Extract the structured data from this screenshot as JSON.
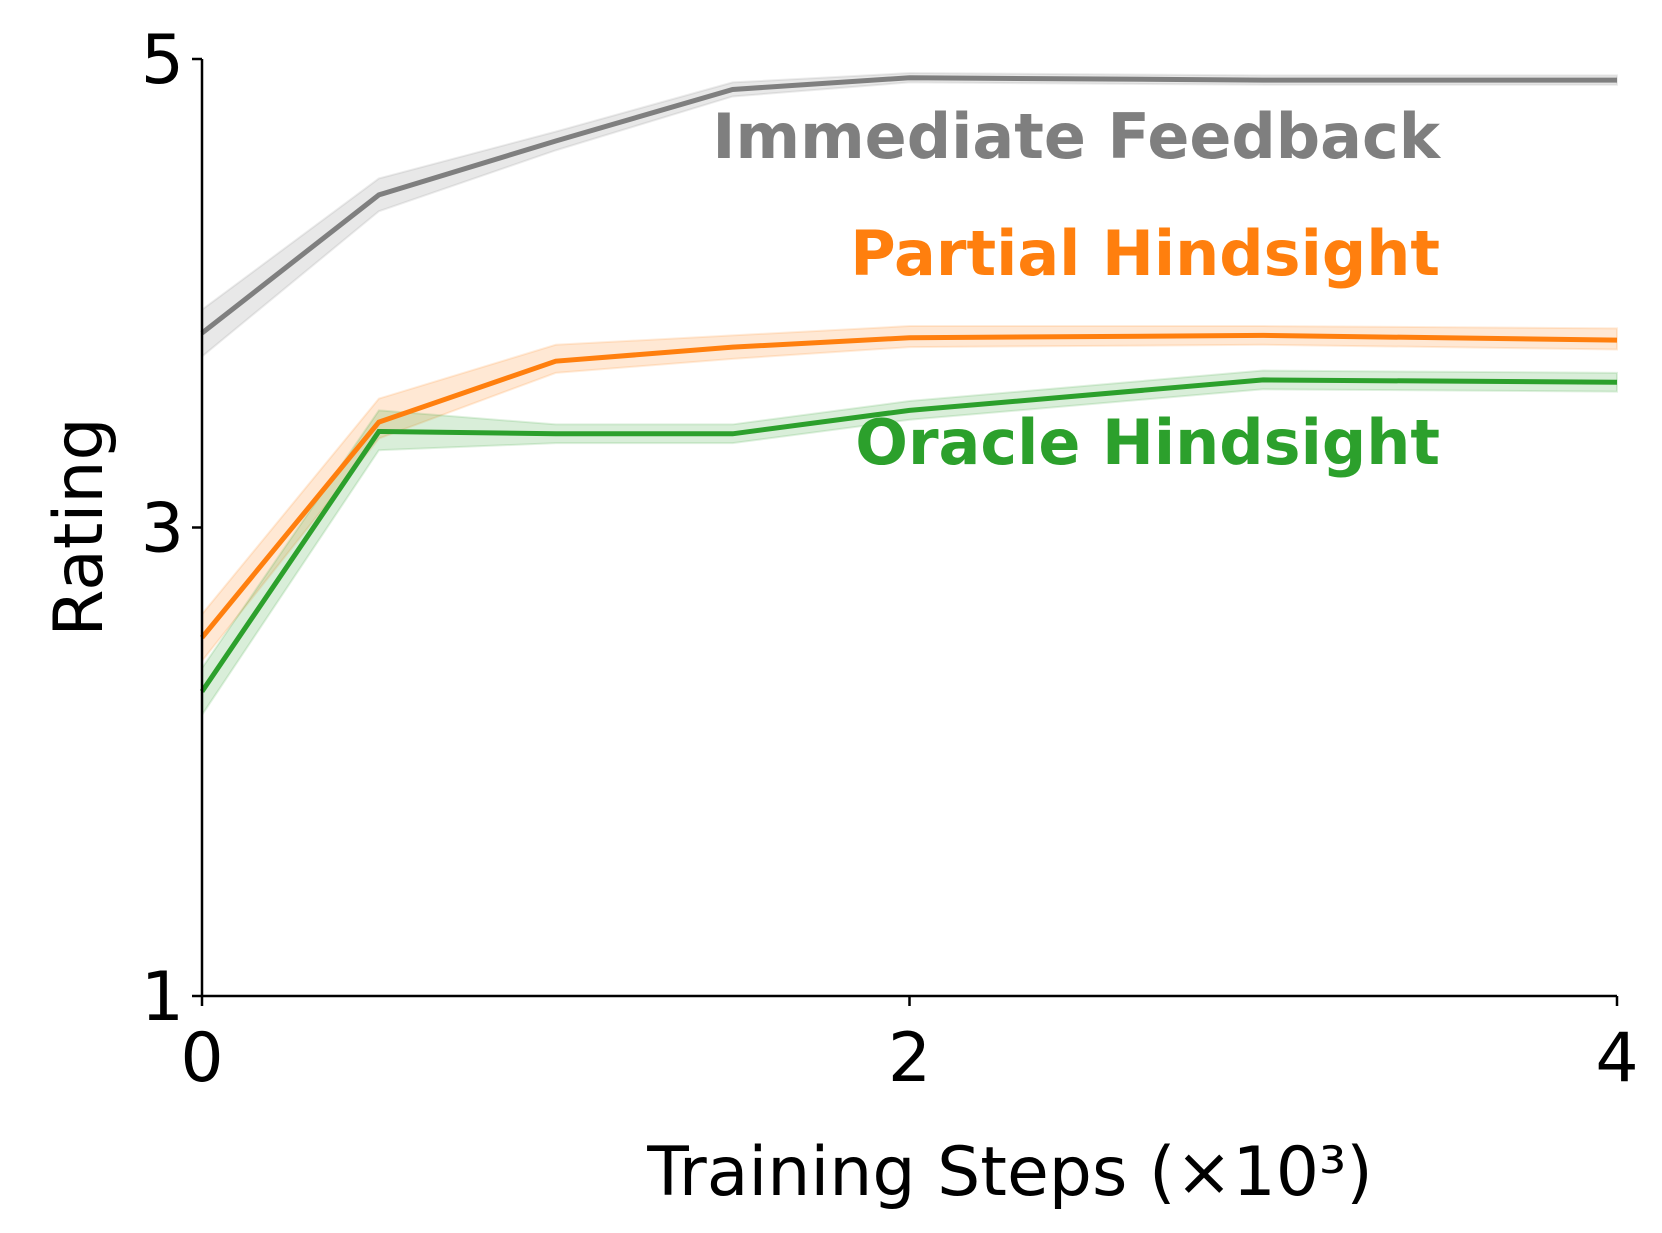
{
  "chart_data": {
    "type": "line",
    "x_label": "Training Steps (×10³)",
    "y_label": "Rating",
    "x": [
      0,
      0.5,
      1,
      1.5,
      2,
      3,
      4
    ],
    "xlim": [
      0,
      4
    ],
    "xticks": [
      0,
      2,
      4
    ],
    "ylim": [
      1,
      5
    ],
    "yticks": [
      1,
      3,
      5
    ],
    "grid": false,
    "series": [
      {
        "name": "Immediate Feedback",
        "color": "#7f7f7f",
        "values": [
          3.83,
          4.42,
          4.65,
          4.87,
          4.92,
          4.91,
          4.91
        ],
        "lower": [
          3.73,
          4.35,
          4.61,
          4.84,
          4.9,
          4.89,
          4.89
        ],
        "upper": [
          3.93,
          4.49,
          4.69,
          4.9,
          4.94,
          4.93,
          4.93
        ]
      },
      {
        "name": "Partial Hindsight",
        "color": "#ff7f0e",
        "values": [
          2.53,
          3.45,
          3.71,
          3.77,
          3.81,
          3.82,
          3.8
        ],
        "lower": [
          2.43,
          3.38,
          3.66,
          3.72,
          3.77,
          3.78,
          3.76
        ],
        "upper": [
          2.63,
          3.55,
          3.78,
          3.82,
          3.86,
          3.86,
          3.85
        ]
      },
      {
        "name": "Oracle Hindsight",
        "color": "#2ca02c",
        "values": [
          2.3,
          3.41,
          3.4,
          3.4,
          3.5,
          3.63,
          3.62
        ],
        "lower": [
          2.2,
          3.33,
          3.36,
          3.36,
          3.46,
          3.59,
          3.58
        ],
        "upper": [
          2.4,
          3.5,
          3.44,
          3.44,
          3.54,
          3.67,
          3.66
        ]
      }
    ]
  }
}
